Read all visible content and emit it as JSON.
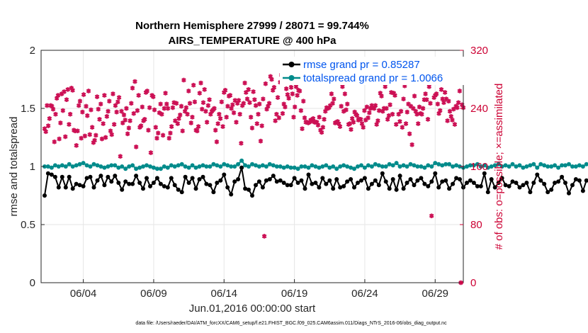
{
  "chart_data": {
    "type": "line",
    "title": "Northern Hemisphere 27999 / 28071 = 99.744%",
    "subtitle": "AIRS_TEMPERATURE @ 400 hPa",
    "xlabel": "Jun.01,2016 00:00:00 start",
    "ylabel": "rmse and totalspread",
    "ylabel_right": "# of obs: o=possible; ×=assimilated",
    "footnote": "data file: /Users/raeder/DAI/ATM_forcXX/CAM6_setup/f.e21.FHIST_BGC.f09_025.CAM6assim.011/Diags_NTrS_2016-06/obs_diag_output.nc",
    "x_tick_labels": [
      "06/04",
      "06/09",
      "06/14",
      "06/19",
      "06/24",
      "06/29"
    ],
    "x_tick_days": [
      4,
      9,
      14,
      19,
      24,
      29
    ],
    "xlim": [
      1,
      31
    ],
    "ylim": [
      0,
      2
    ],
    "y_ticks": [
      "0",
      "0.5",
      "1",
      "1.5",
      "2"
    ],
    "ylim_right": [
      0,
      320
    ],
    "y_ticks_right": [
      "0",
      "80",
      "160",
      "240",
      "320"
    ],
    "grid": true,
    "legend_position": "top-right",
    "x_start_day": 1.25,
    "x_step_days": 0.25,
    "series": [
      {
        "name": "rmse grand pr = 0.85287",
        "color": "#000000",
        "marker": "filled-circle",
        "values": [
          0.75,
          0.94,
          0.93,
          0.91,
          0.82,
          0.91,
          0.82,
          0.91,
          0.81,
          0.85,
          0.84,
          0.83,
          0.9,
          0.91,
          0.82,
          0.88,
          0.92,
          0.84,
          0.91,
          0.87,
          0.92,
          0.86,
          0.8,
          0.87,
          0.85,
          0.85,
          0.92,
          0.86,
          0.81,
          0.9,
          0.83,
          0.86,
          0.9,
          0.85,
          0.83,
          0.82,
          0.9,
          0.84,
          0.8,
          0.78,
          0.91,
          0.86,
          0.9,
          0.81,
          0.89,
          0.91,
          0.85,
          0.84,
          0.78,
          0.86,
          0.88,
          0.93,
          0.82,
          0.76,
          0.87,
          0.89,
          0.99,
          0.81,
          0.8,
          0.75,
          0.84,
          0.87,
          0.82,
          0.88,
          0.89,
          0.92,
          0.87,
          0.88,
          0.86,
          0.84,
          0.84,
          0.9,
          0.86,
          0.88,
          0.81,
          0.93,
          0.85,
          0.86,
          0.82,
          0.9,
          0.85,
          0.88,
          0.81,
          0.89,
          0.82,
          0.83,
          0.87,
          0.89,
          0.82,
          0.86,
          0.88,
          0.9,
          0.81,
          0.85,
          0.88,
          0.84,
          0.94,
          0.87,
          0.81,
          0.89,
          0.8,
          0.92,
          0.81,
          0.86,
          0.89,
          0.84,
          0.88,
          0.9,
          0.85,
          0.83,
          0.87,
          0.94,
          0.82,
          0.87,
          0.88,
          0.81,
          0.85,
          0.9,
          0.89,
          0.82,
          0.86,
          0.88,
          0.86,
          0.83,
          0.83,
          0.94,
          0.78,
          0.89,
          0.82,
          0.86,
          0.9,
          0.84,
          0.83,
          0.87,
          0.86,
          0.82,
          0.84,
          0.86,
          0.78,
          0.86,
          0.93,
          0.88,
          0.85,
          0.78,
          0.8,
          0.86,
          0.87,
          0.91,
          0.86,
          0.77,
          0.84,
          0.89,
          0.88,
          0.79,
          0.88,
          0.86,
          0.82,
          0.91,
          0.89,
          0.82,
          0.8,
          0.87,
          0.86,
          0.85,
          0.84,
          0.83,
          0.84,
          0.82,
          0.77,
          0.86,
          0.79,
          0.84,
          0.86
        ]
      },
      {
        "name": "totalspread grand pr = 1.0066",
        "color": "#008b8b",
        "marker": "filled-circle",
        "values": [
          1.0,
          1.0,
          0.99,
          1.01,
          1.0,
          1.01,
          1.0,
          1.02,
          1.0,
          1.01,
          1.02,
          1.03,
          1.01,
          1.0,
          1.02,
          1.01,
          1.0,
          0.99,
          1.0,
          1.01,
          1.01,
          0.99,
          1.0,
          0.98,
          1.0,
          1.01,
          0.98,
          0.99,
          1.0,
          1.01,
          1.0,
          0.99,
          0.98,
          0.98,
          1.0,
          0.99,
          1.01,
          1.0,
          1.01,
          1.02,
          1.0,
          0.99,
          1.01,
          0.99,
          1.0,
          1.01,
          1.0,
          1.0,
          1.02,
          1.01,
          1.0,
          1.02,
          1.01,
          1.0,
          1.0,
          1.02,
          1.05,
          1.01,
          1.0,
          1.02,
          1.01,
          1.0,
          1.01,
          1.0,
          1.02,
          1.01,
          1.0,
          1.0,
          0.99,
          1.0,
          0.99,
          0.99,
          0.98,
          1.0,
          1.0,
          0.99,
          1.01,
          1.0,
          0.99,
          1.0,
          1.01,
          0.99,
          1.0,
          0.98,
          1.0,
          1.01,
          1.0,
          0.99,
          0.98,
          1.0,
          1.01,
          0.99,
          1.01,
          1.0,
          1.02,
          1.01,
          1.0,
          1.0,
          1.02,
          1.01,
          1.03,
          1.0,
          1.01,
          1.0,
          1.02,
          1.01,
          1.0,
          1.0,
          0.99,
          1.01,
          1.0,
          1.03,
          1.02,
          1.01,
          1.02,
          1.02,
          1.0,
          1.01,
          1.0,
          0.99,
          1.0,
          1.01,
          1.01,
          1.02,
          1.0,
          1.01,
          0.99,
          1.0,
          1.01,
          1.02,
          1.0,
          1.01,
          1.0,
          1.02,
          1.0,
          1.01,
          0.99,
          1.0,
          1.01,
          1.02,
          0.99,
          1.02,
          1.01,
          1.0,
          1.0,
          1.01,
          0.99,
          1.01,
          1.01,
          1.02,
          1.0,
          1.0,
          1.01,
          1.0,
          1.02,
          1.01,
          0.99,
          1.0,
          0.98,
          1.0,
          1.01,
          1.0,
          0.98,
          1.01,
          1.0,
          1.01,
          0.98,
          1.01,
          1.0,
          0.99,
          1.0,
          0.99,
          1.0
        ]
      },
      {
        "name": "# of obs possible / assimilated",
        "axis": "right",
        "color": "#cc1155",
        "marker": "asterisk",
        "values": [
          212,
          208,
          244,
          216,
          226,
          244,
          243,
          239,
          194,
          232,
          254,
          258,
          198,
          220,
          260,
          237,
          263,
          201,
          252,
          266,
          218,
          232,
          268,
          265,
          210,
          209,
          189,
          209,
          244,
          250,
          199,
          235,
          259,
          202,
          243,
          230,
          264,
          204,
          238,
          214,
          193,
          196,
          203,
          256,
          239,
          225,
          246,
          198,
          219,
          258,
          200,
          229,
          236,
          250,
          209,
          204,
          260,
          218,
          244,
          235,
          249,
          255,
          174,
          236,
          220,
          231,
          224,
          240,
          205,
          213,
          223,
          247,
          268,
          233,
          277,
          187,
          237,
          258,
          214,
          216,
          242,
          223,
          225,
          262,
          264,
          210,
          241,
          179,
          258,
          256,
          238,
          214,
          199,
          206,
          234,
          246,
          232,
          203,
          240,
          261,
          246,
          240,
          199,
          206,
          215,
          241,
          248,
          223,
          247,
          219,
          226,
          231,
          243,
          209,
          279,
          236,
          241,
          232,
          264,
          247,
          220,
          228,
          272,
          249,
          210,
          209,
          215,
          261,
          275,
          239,
          248,
          266,
          236,
          221,
          244,
          252,
          232,
          236,
          238,
          240,
          210,
          194,
          219,
          232,
          226,
          249,
          215,
          262,
          265,
          228,
          243,
          257,
          258,
          240,
          245,
          234,
          251,
          221,
          247,
          251,
          232,
          192,
          244,
          247,
          275,
          262,
          253,
          266,
          248,
          228,
          213,
          263,
          252,
          244,
          219,
          232,
          246,
          195,
          216,
          253,
          64,
          274,
          239,
          243,
          247,
          284,
          280,
          265,
          269,
          223,
          232,
          255,
          227,
          276,
          286,
          233,
          246,
          242,
          267,
          259,
          254,
          275,
          269,
          260,
          228,
          242,
          270,
          258,
          265,
          264,
          237,
          212,
          250,
          227,
          221,
          221,
          220,
          221,
          224,
          223,
          226,
          221,
          221,
          221,
          217,
          228,
          210,
          207,
          214,
          225,
          236,
          241,
          240,
          241,
          244,
          260,
          247,
          253,
          220,
          221,
          222,
          219,
          215,
          243,
          270,
          236,
          260,
          238,
          246,
          218,
          219,
          211,
          226,
          221,
          235,
          232,
          230,
          224,
          225,
          225,
          219,
          214,
          237,
          224,
          242,
          227,
          234,
          240,
          244,
          241,
          240,
          244,
          218,
          223,
          237,
          261,
          257,
          236,
          240,
          270,
          240,
          225,
          230,
          245,
          262,
          232,
          261,
          258,
          218,
          276,
          232,
          222,
          236,
          214,
          253,
          271,
          219,
          235,
          246,
          205,
          243,
          190,
          240,
          257,
          236,
          232,
          219,
          242,
          233,
          232,
          240,
          252,
          260,
          252,
          225,
          270,
          247,
          92,
          276,
          255,
          258,
          260,
          246,
          233,
          237,
          266,
          253,
          248,
          262,
          253,
          223,
          250,
          236,
          229,
          224,
          239,
          218,
          243,
          241,
          248,
          264,
          0,
          245,
          241
        ]
      }
    ]
  }
}
